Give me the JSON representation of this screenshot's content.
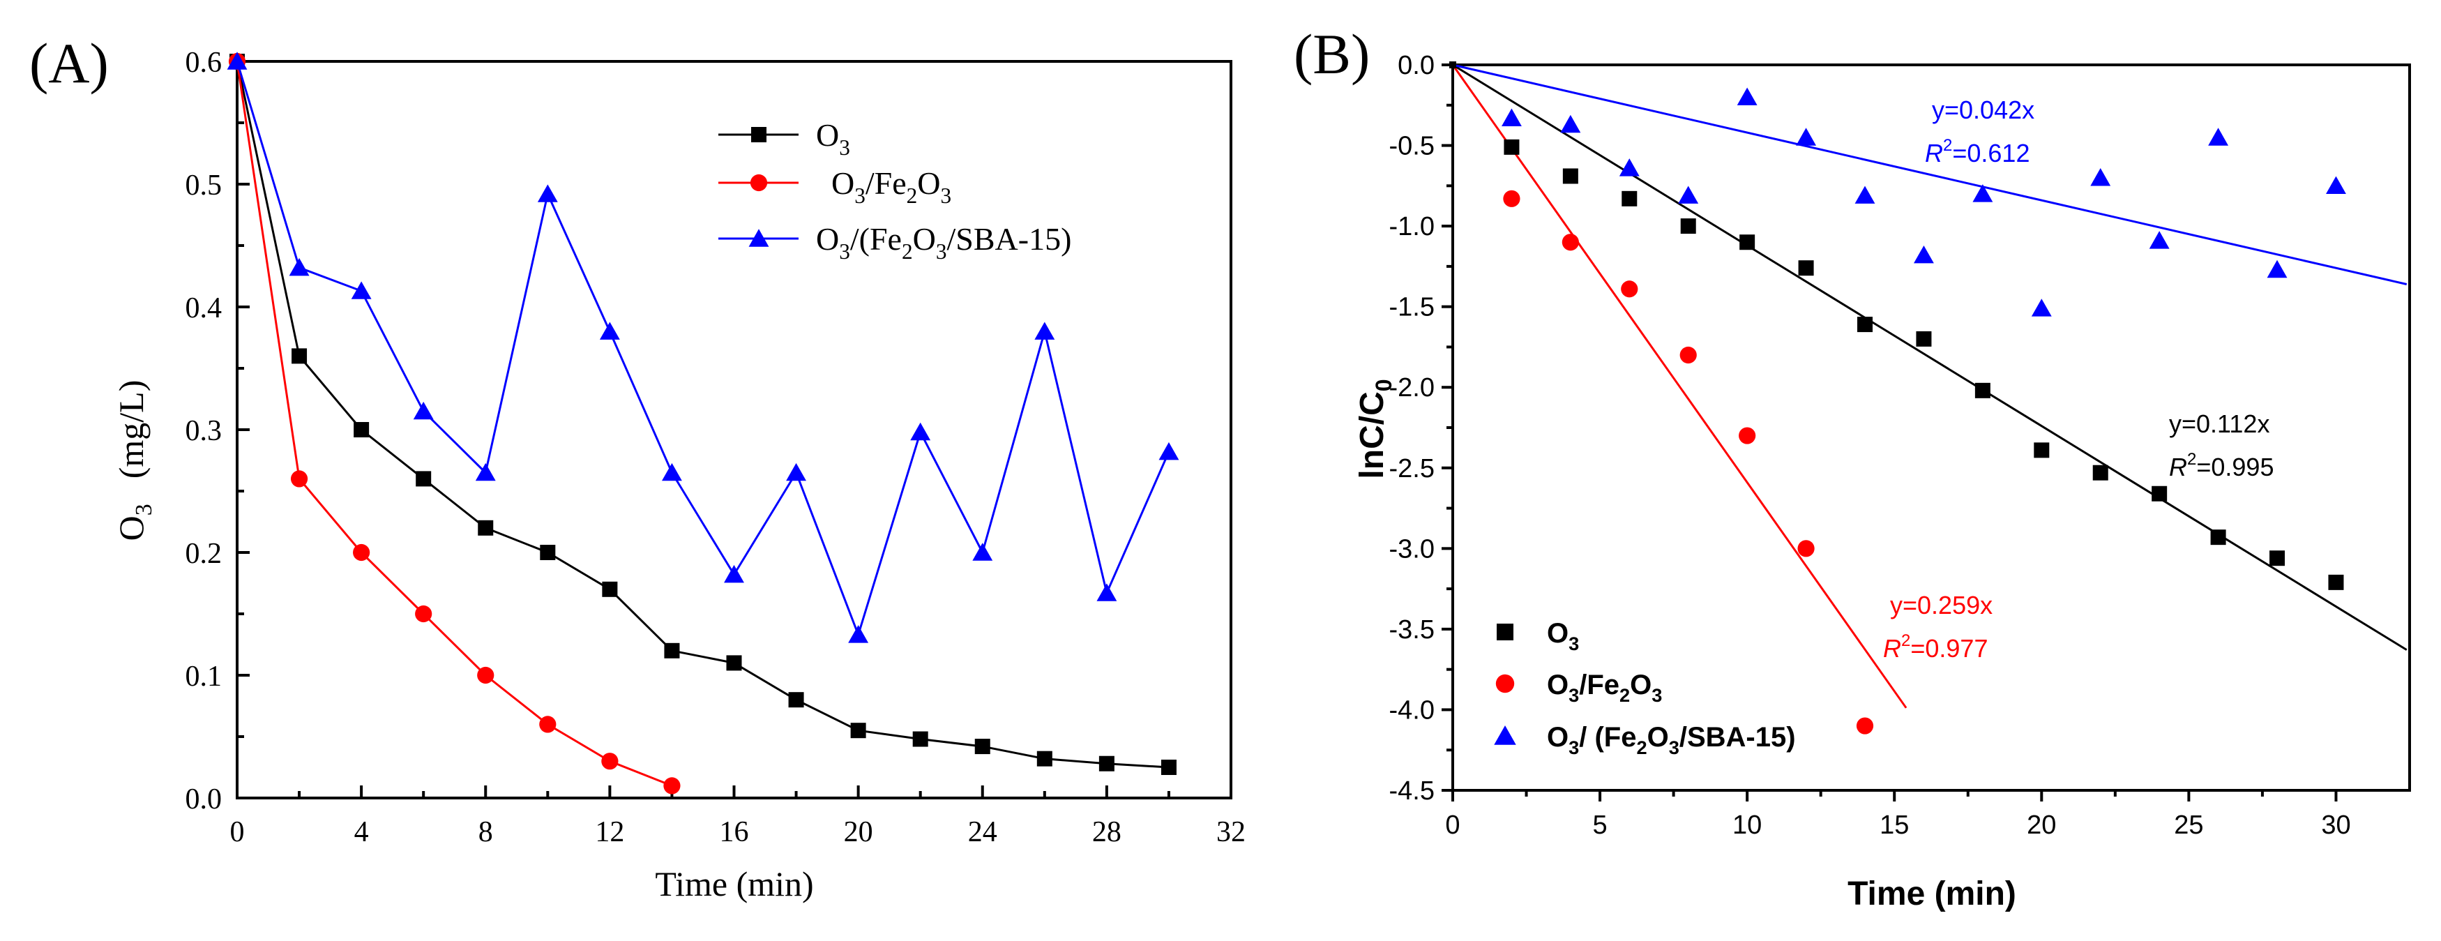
{
  "chart_data": [
    {
      "panel_label": "(A)",
      "type": "line",
      "xlabel": "Time (min)",
      "ylabel_main": "O",
      "ylabel_sub": "3",
      "ylabel_unit": "(mg/L)",
      "xlim": [
        0,
        32
      ],
      "ylim": [
        0,
        0.6
      ],
      "xticks": [
        "0",
        "4",
        "8",
        "12",
        "16",
        "20",
        "24",
        "28",
        "32"
      ],
      "yticks": [
        "0.0",
        "0.1",
        "0.2",
        "0.3",
        "0.4",
        "0.5",
        "0.6"
      ],
      "grid": false,
      "legend_position": "top-right",
      "series": [
        {
          "name": "O3",
          "legend": [
            [
              "O",
              ""
            ],
            [
              "3",
              "sub"
            ]
          ],
          "color": "#000000",
          "marker": "square",
          "points": [
            [
              0,
              0.6
            ],
            [
              2,
              0.36
            ],
            [
              4,
              0.3
            ],
            [
              6,
              0.26
            ],
            [
              8,
              0.22
            ],
            [
              10,
              0.2
            ],
            [
              12,
              0.17
            ],
            [
              14,
              0.12
            ],
            [
              16,
              0.11
            ],
            [
              18,
              0.08
            ],
            [
              20,
              0.055
            ],
            [
              22,
              0.048
            ],
            [
              24,
              0.042
            ],
            [
              26,
              0.032
            ],
            [
              28,
              0.028
            ],
            [
              30,
              0.025
            ]
          ]
        },
        {
          "name": "O3/Fe2O3",
          "legend": [
            [
              "O",
              ""
            ],
            [
              "3",
              "sub"
            ],
            [
              "/Fe",
              ""
            ],
            [
              "2",
              "sub"
            ],
            [
              "O",
              ""
            ],
            [
              "3",
              "sub"
            ]
          ],
          "color": "#ff0000",
          "marker": "circle",
          "points": [
            [
              0,
              0.6
            ],
            [
              2,
              0.26
            ],
            [
              4,
              0.2
            ],
            [
              6,
              0.15
            ],
            [
              8,
              0.1
            ],
            [
              10,
              0.06
            ],
            [
              12,
              0.03
            ],
            [
              14,
              0.01
            ]
          ]
        },
        {
          "name": "O3/(Fe2O3/SBA-15)",
          "legend": [
            [
              "O",
              ""
            ],
            [
              "3",
              "sub"
            ],
            [
              "/(Fe",
              ""
            ],
            [
              "2",
              "sub"
            ],
            [
              "O",
              ""
            ],
            [
              "3",
              "sub"
            ],
            [
              "/SBA-15)",
              ""
            ]
          ],
          "color": "#0000ff",
          "marker": "triangle",
          "points": [
            [
              0,
              0.6
            ],
            [
              2,
              0.432
            ],
            [
              4,
              0.413
            ],
            [
              6,
              0.315
            ],
            [
              8,
              0.265
            ],
            [
              10,
              0.492
            ],
            [
              12,
              0.38
            ],
            [
              14,
              0.265
            ],
            [
              16,
              0.182
            ],
            [
              18,
              0.265
            ],
            [
              20,
              0.133
            ],
            [
              22,
              0.298
            ],
            [
              24,
              0.2
            ],
            [
              26,
              0.38
            ],
            [
              28,
              0.167
            ],
            [
              30,
              0.282
            ]
          ]
        }
      ]
    },
    {
      "panel_label": "(B)",
      "type": "scatter",
      "xlabel": "Time (min)",
      "ylabel_main": "lnC/C",
      "ylabel_sub": "0",
      "xlim": [
        0,
        32.5
      ],
      "ylim": [
        -4.5,
        0.0
      ],
      "xticks": [
        "0",
        "5",
        "10",
        "15",
        "20",
        "25",
        "30"
      ],
      "yticks": [
        "0.0",
        "-0.5",
        "-1.0",
        "-1.5",
        "-2.0",
        "-2.5",
        "-3.0",
        "-3.5",
        "-4.0",
        "-4.5"
      ],
      "grid": false,
      "legend_position": "bottom-left",
      "series": [
        {
          "name": "O3",
          "legend": [
            [
              "O",
              ""
            ],
            [
              "3",
              "sub"
            ]
          ],
          "color": "#000000",
          "marker": "square",
          "points": [
            [
              2,
              -0.51
            ],
            [
              4,
              -0.69
            ],
            [
              6,
              -0.83
            ],
            [
              8,
              -1.0
            ],
            [
              10,
              -1.1
            ],
            [
              12,
              -1.26
            ],
            [
              14,
              -1.61
            ],
            [
              16,
              -1.7
            ],
            [
              18,
              -2.02
            ],
            [
              20,
              -2.39
            ],
            [
              22,
              -2.53
            ],
            [
              24,
              -2.66
            ],
            [
              26,
              -2.93
            ],
            [
              28,
              -3.06
            ],
            [
              30,
              -3.21
            ]
          ],
          "fit": {
            "slope": -0.112,
            "x_end": 32.4,
            "eq": "y=0.112x",
            "r2": "=0.995"
          }
        },
        {
          "name": "O3/Fe2O3",
          "legend": [
            [
              "O",
              ""
            ],
            [
              "3",
              "sub"
            ],
            [
              "/Fe",
              ""
            ],
            [
              "2",
              "sub"
            ],
            [
              "O",
              ""
            ],
            [
              "3",
              "sub"
            ]
          ],
          "color": "#ff0000",
          "marker": "circle",
          "points": [
            [
              2,
              -0.83
            ],
            [
              4,
              -1.1
            ],
            [
              6,
              -1.39
            ],
            [
              8,
              -1.8
            ],
            [
              10,
              -2.3
            ],
            [
              12,
              -3.0
            ],
            [
              14,
              -4.1
            ]
          ],
          "fit": {
            "slope": -0.259,
            "x_end": 15.4,
            "eq": "y=0.259x",
            "r2": "=0.977"
          }
        },
        {
          "name": "O3/(Fe2O3/SBA-15)",
          "legend": [
            [
              "O",
              ""
            ],
            [
              "3",
              "sub"
            ],
            [
              "/ (Fe",
              ""
            ],
            [
              "2",
              "sub"
            ],
            [
              "O",
              ""
            ],
            [
              "3",
              "sub"
            ],
            [
              "/SBA-15)",
              ""
            ]
          ],
          "color": "#0000ff",
          "marker": "triangle",
          "points": [
            [
              2,
              -0.33
            ],
            [
              4,
              -0.37
            ],
            [
              6,
              -0.64
            ],
            [
              8,
              -0.81
            ],
            [
              10,
              -0.2
            ],
            [
              12,
              -0.45
            ],
            [
              14,
              -0.81
            ],
            [
              16,
              -1.18
            ],
            [
              18,
              -0.8
            ],
            [
              20,
              -1.51
            ],
            [
              22,
              -0.7
            ],
            [
              24,
              -1.09
            ],
            [
              26,
              -0.45
            ],
            [
              28,
              -1.27
            ],
            [
              30,
              -0.75
            ]
          ],
          "fit": {
            "slope": -0.042,
            "x_end": 32.4,
            "eq": "y=0.042x",
            "r2": "=0.612"
          }
        }
      ]
    }
  ],
  "r2_symbol": "R",
  "r2_sup": "2"
}
